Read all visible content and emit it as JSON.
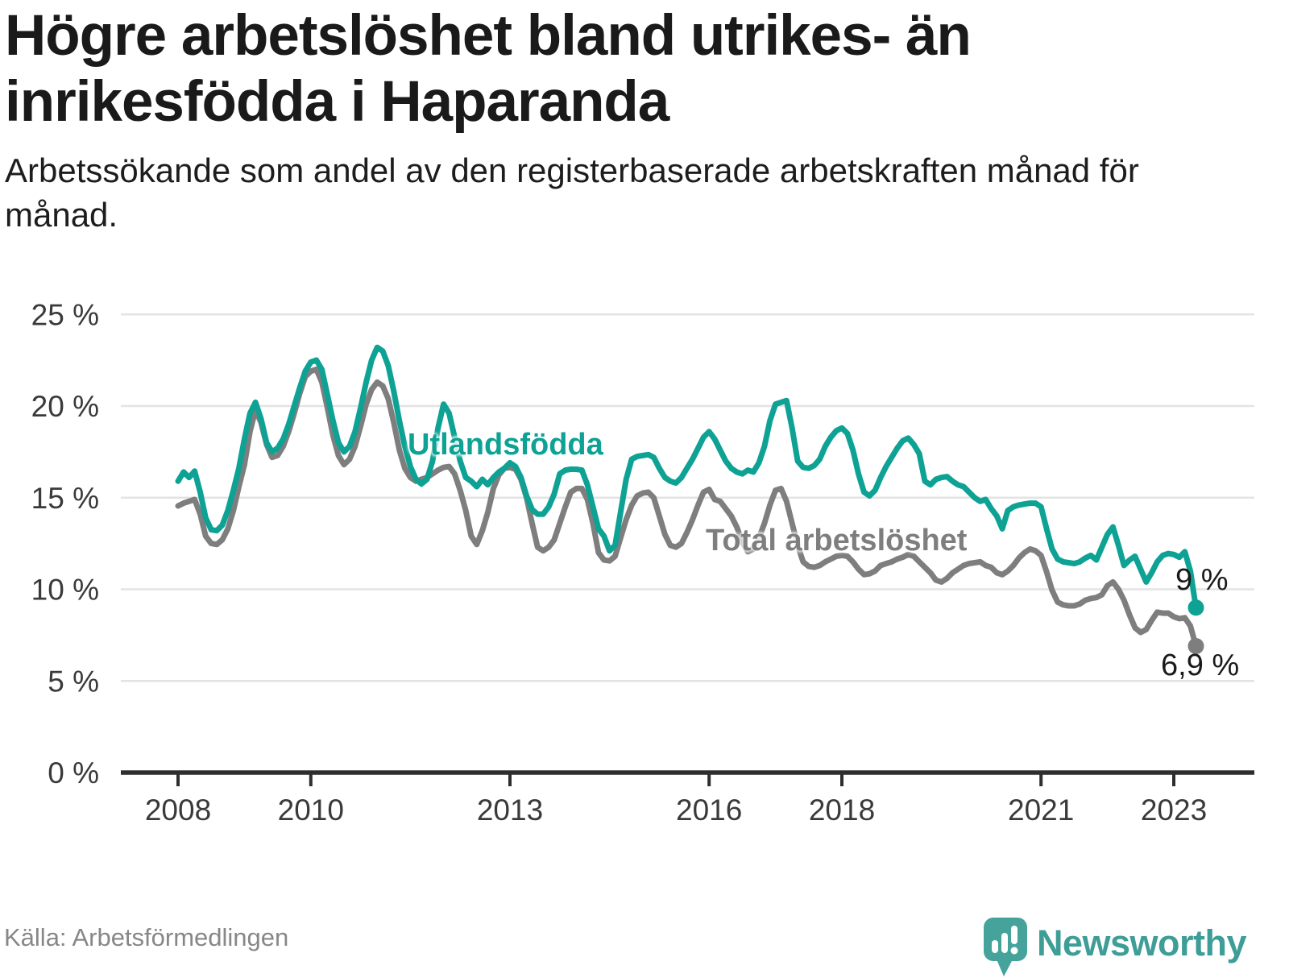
{
  "header": {
    "title": "Högre arbetslöshet bland utrikes- än inrikesfödda i Haparanda",
    "subtitle": "Arbetssökande som andel av den registerbaserade arbetskraften månad för månad."
  },
  "footer": {
    "source": "Källa: Arbetsförmedlingen",
    "brand": "Newsworthy"
  },
  "chart_data": {
    "type": "line",
    "title": "Högre arbetslöshet bland utrikes- än inrikesfödda i Haparanda",
    "x_start": 2008,
    "x_step_months": 1,
    "x_axis": {
      "ticks": [
        2008,
        2010,
        2013,
        2016,
        2018,
        2021,
        2023
      ]
    },
    "y_axis": {
      "ticks": [
        0,
        5,
        10,
        15,
        20,
        25
      ],
      "suffix": " %",
      "ylim": [
        0,
        25
      ]
    },
    "grid": true,
    "colors": {
      "accent_teal": "#0DA294",
      "gray": "#7E7E7E",
      "grid": "#E3E3E3",
      "axis": "#2E2E2E",
      "tick_label": "#3A3A3A"
    },
    "series": [
      {
        "name": "Utlandsfödda",
        "color": "#0DA294",
        "end_label": "9 %",
        "end_value": 9.0,
        "values": [
          15.9,
          16.4,
          16.1,
          16.45,
          15.3,
          13.9,
          13.25,
          13.2,
          13.5,
          14.3,
          15.4,
          16.6,
          18.2,
          19.6,
          20.2,
          19.3,
          18.0,
          17.5,
          17.7,
          18.2,
          19.0,
          20.0,
          21.0,
          21.9,
          22.4,
          22.5,
          22.0,
          20.6,
          19.2,
          18.0,
          17.5,
          17.8,
          18.6,
          19.9,
          21.3,
          22.5,
          23.2,
          23.0,
          22.2,
          20.8,
          19.2,
          17.8,
          16.7,
          16.0,
          15.75,
          16.0,
          17.0,
          18.8,
          20.1,
          19.6,
          18.3,
          17.0,
          16.1,
          15.9,
          15.6,
          16.0,
          15.7,
          16.1,
          16.4,
          16.6,
          16.9,
          16.7,
          16.1,
          15.1,
          14.35,
          14.1,
          14.1,
          14.5,
          15.2,
          16.3,
          16.5,
          16.55,
          16.55,
          16.5,
          15.7,
          14.5,
          13.3,
          12.9,
          12.1,
          12.4,
          14.2,
          16.0,
          17.1,
          17.25,
          17.3,
          17.35,
          17.2,
          16.6,
          16.1,
          15.9,
          15.8,
          16.1,
          16.6,
          17.1,
          17.7,
          18.3,
          18.6,
          18.2,
          17.6,
          17.0,
          16.6,
          16.4,
          16.3,
          16.5,
          16.4,
          16.9,
          17.8,
          19.2,
          20.1,
          20.2,
          20.3,
          18.8,
          17.0,
          16.65,
          16.6,
          16.75,
          17.1,
          17.8,
          18.3,
          18.65,
          18.8,
          18.5,
          17.6,
          16.3,
          15.3,
          15.1,
          15.4,
          16.1,
          16.7,
          17.2,
          17.7,
          18.1,
          18.25,
          17.9,
          17.4,
          15.9,
          15.7,
          16.0,
          16.1,
          16.15,
          15.9,
          15.7,
          15.6,
          15.3,
          15.0,
          14.8,
          14.9,
          14.4,
          14.0,
          13.3,
          14.3,
          14.5,
          14.6,
          14.65,
          14.7,
          14.7,
          14.5,
          13.3,
          12.2,
          11.65,
          11.5,
          11.45,
          11.4,
          11.5,
          11.7,
          11.85,
          11.6,
          12.3,
          13.0,
          13.4,
          12.4,
          11.3,
          11.6,
          11.8,
          11.1,
          10.4,
          10.9,
          11.5,
          11.85,
          11.95,
          11.9,
          11.75,
          12.05,
          11.0,
          9.0
        ]
      },
      {
        "name": "Total arbetslöshet",
        "color": "#7E7E7E",
        "end_label": "6,9 %",
        "end_value": 6.9,
        "values": [
          14.55,
          14.7,
          14.8,
          14.9,
          14.1,
          12.9,
          12.5,
          12.45,
          12.7,
          13.3,
          14.3,
          15.6,
          16.8,
          18.6,
          19.8,
          19.1,
          17.9,
          17.2,
          17.3,
          17.8,
          18.6,
          19.6,
          20.7,
          21.6,
          21.9,
          22.0,
          21.3,
          19.9,
          18.4,
          17.3,
          16.8,
          17.1,
          17.8,
          18.9,
          20.1,
          20.9,
          21.3,
          21.1,
          20.4,
          19.1,
          17.6,
          16.6,
          16.1,
          15.9,
          16.0,
          16.1,
          16.3,
          16.5,
          16.65,
          16.7,
          16.3,
          15.4,
          14.3,
          12.9,
          12.45,
          13.2,
          14.2,
          15.5,
          16.25,
          16.6,
          16.65,
          16.55,
          16.0,
          15.0,
          13.6,
          12.3,
          12.1,
          12.3,
          12.7,
          13.6,
          14.5,
          15.3,
          15.5,
          15.5,
          14.9,
          13.6,
          12.0,
          11.6,
          11.55,
          11.8,
          12.8,
          13.8,
          14.6,
          15.1,
          15.25,
          15.3,
          15.0,
          14.0,
          13.0,
          12.4,
          12.3,
          12.5,
          13.1,
          13.8,
          14.6,
          15.3,
          15.45,
          14.9,
          14.8,
          14.4,
          14.0,
          13.4,
          12.6,
          12.05,
          12.2,
          12.8,
          13.6,
          14.6,
          15.4,
          15.5,
          14.8,
          13.6,
          12.4,
          11.5,
          11.25,
          11.2,
          11.3,
          11.5,
          11.65,
          11.8,
          11.85,
          11.8,
          11.5,
          11.1,
          10.8,
          10.85,
          11.0,
          11.3,
          11.4,
          11.5,
          11.65,
          11.75,
          11.9,
          11.8,
          11.5,
          11.2,
          10.9,
          10.5,
          10.4,
          10.6,
          10.9,
          11.1,
          11.3,
          11.4,
          11.45,
          11.5,
          11.3,
          11.2,
          10.9,
          10.8,
          11.0,
          11.3,
          11.7,
          12.0,
          12.2,
          12.1,
          11.85,
          10.95,
          9.95,
          9.3,
          9.15,
          9.1,
          9.1,
          9.2,
          9.4,
          9.5,
          9.55,
          9.7,
          10.2,
          10.4,
          10.0,
          9.4,
          8.6,
          7.9,
          7.65,
          7.8,
          8.3,
          8.75,
          8.7,
          8.7,
          8.5,
          8.4,
          8.45,
          8.0,
          6.9
        ]
      }
    ],
    "legend_position": "inline-annotations"
  }
}
